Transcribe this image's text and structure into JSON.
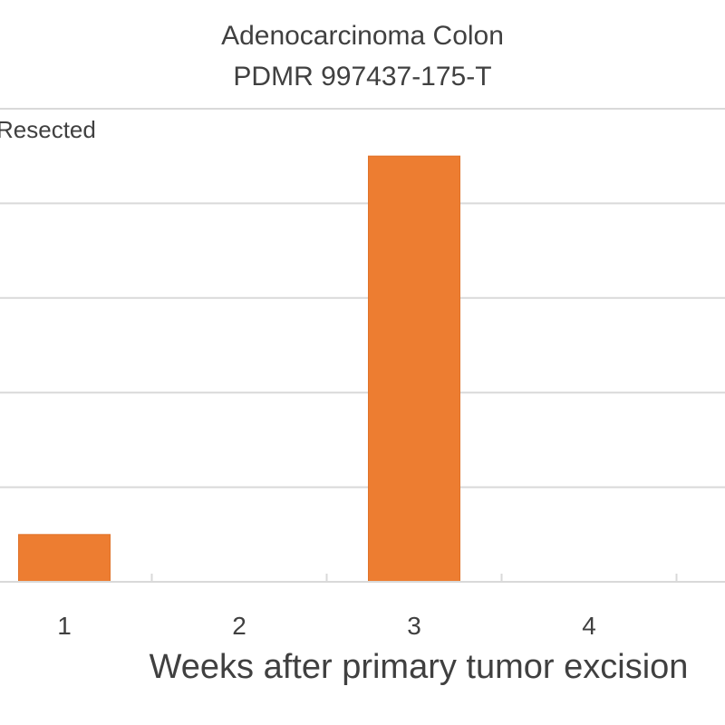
{
  "chart_data": {
    "type": "bar",
    "title": "Adenocarcinoma Colon",
    "subtitle": "PDMR 997437-175-T",
    "ylabel": "Resected",
    "xlabel": "Weeks after primary tumor excision",
    "categories": [
      "1",
      "2",
      "3",
      "4"
    ],
    "values": [
      0.5,
      0,
      4.5,
      0
    ],
    "ylim": [
      0,
      5
    ],
    "grid": true,
    "bar_color": "#ED7D31",
    "gridline_color": "#D9D9D9",
    "axis_color": "#D9D9D9",
    "text_color": "#404040"
  }
}
